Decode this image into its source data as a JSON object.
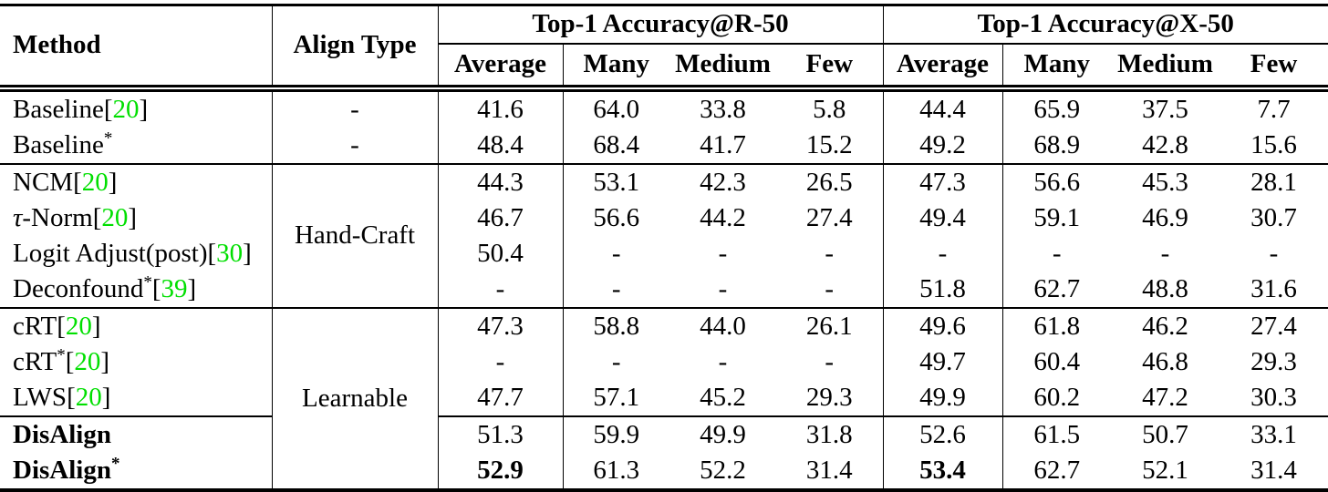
{
  "header": {
    "method": "Method",
    "align_type": "Align Type",
    "sections": [
      {
        "title": "Top-1 Accuracy@R-50",
        "cols": [
          "Average",
          "Many",
          "Medium",
          "Few"
        ]
      },
      {
        "title": "Top-1 Accuracy@X-50",
        "cols": [
          "Average",
          "Many",
          "Medium",
          "Few"
        ]
      }
    ]
  },
  "accent_colors": {
    "citation_green": "#00DF00",
    "rule_black": "#000000"
  },
  "groups": [
    {
      "align_mode": "per-row",
      "rows": [
        {
          "method": {
            "label": "Baseline",
            "star": false,
            "cite": "20"
          },
          "align": "-",
          "bold": false,
          "values": [
            "41.6",
            "64.0",
            "33.8",
            "5.8",
            "44.4",
            "65.9",
            "37.5",
            "7.7"
          ],
          "bold_vals": []
        },
        {
          "method": {
            "label": "Baseline",
            "star": true,
            "cite": null
          },
          "align": "-",
          "bold": false,
          "values": [
            "48.4",
            "68.4",
            "41.7",
            "15.2",
            "49.2",
            "68.9",
            "42.8",
            "15.6"
          ],
          "bold_vals": []
        }
      ]
    },
    {
      "align_mode": "span",
      "align": "Hand-Craft",
      "rows": [
        {
          "method": {
            "label": "NCM",
            "star": false,
            "cite": "20"
          },
          "bold": false,
          "values": [
            "44.3",
            "53.1",
            "42.3",
            "26.5",
            "47.3",
            "56.6",
            "45.3",
            "28.1"
          ],
          "bold_vals": []
        },
        {
          "method": {
            "label": "τ-Norm",
            "star": false,
            "cite": "20"
          },
          "bold": false,
          "values": [
            "46.7",
            "56.6",
            "44.2",
            "27.4",
            "49.4",
            "59.1",
            "46.9",
            "30.7"
          ],
          "bold_vals": []
        },
        {
          "method": {
            "label": "Logit Adjust(post)",
            "star": false,
            "cite": "30"
          },
          "bold": false,
          "values": [
            "50.4",
            "-",
            "-",
            "-",
            "-",
            "-",
            "-",
            "-"
          ],
          "bold_vals": []
        },
        {
          "method": {
            "label": "Deconfound",
            "star": true,
            "cite": "39"
          },
          "bold": false,
          "values": [
            "-",
            "-",
            "-",
            "-",
            "51.8",
            "62.7",
            "48.8",
            "31.6"
          ],
          "bold_vals": []
        }
      ]
    },
    {
      "align_mode": "span",
      "align": "Learnable",
      "rows": [
        {
          "method": {
            "label": "cRT",
            "star": false,
            "cite": "20"
          },
          "bold": false,
          "values": [
            "47.3",
            "58.8",
            "44.0",
            "26.1",
            "49.6",
            "61.8",
            "46.2",
            "27.4"
          ],
          "bold_vals": []
        },
        {
          "method": {
            "label": "cRT",
            "star": true,
            "cite": "20"
          },
          "bold": false,
          "values": [
            "-",
            "-",
            "-",
            "-",
            "49.7",
            "60.4",
            "46.8",
            "29.3"
          ],
          "bold_vals": []
        },
        {
          "method": {
            "label": "LWS",
            "star": false,
            "cite": "20"
          },
          "bold": false,
          "values": [
            "47.7",
            "57.1",
            "45.2",
            "29.3",
            "49.9",
            "60.2",
            "47.2",
            "30.3"
          ],
          "bold_vals": []
        },
        {
          "method": {
            "label": "DisAlign",
            "star": false,
            "cite": null
          },
          "bold": true,
          "sep_before": true,
          "values": [
            "51.3",
            "59.9",
            "49.9",
            "31.8",
            "52.6",
            "61.5",
            "50.7",
            "33.1"
          ],
          "bold_vals": []
        },
        {
          "method": {
            "label": "DisAlign",
            "star": true,
            "cite": null
          },
          "bold": true,
          "values": [
            "52.9",
            "61.3",
            "52.2",
            "31.4",
            "53.4",
            "62.7",
            "52.1",
            "31.4"
          ],
          "bold_vals": [
            0,
            4
          ]
        }
      ]
    }
  ]
}
